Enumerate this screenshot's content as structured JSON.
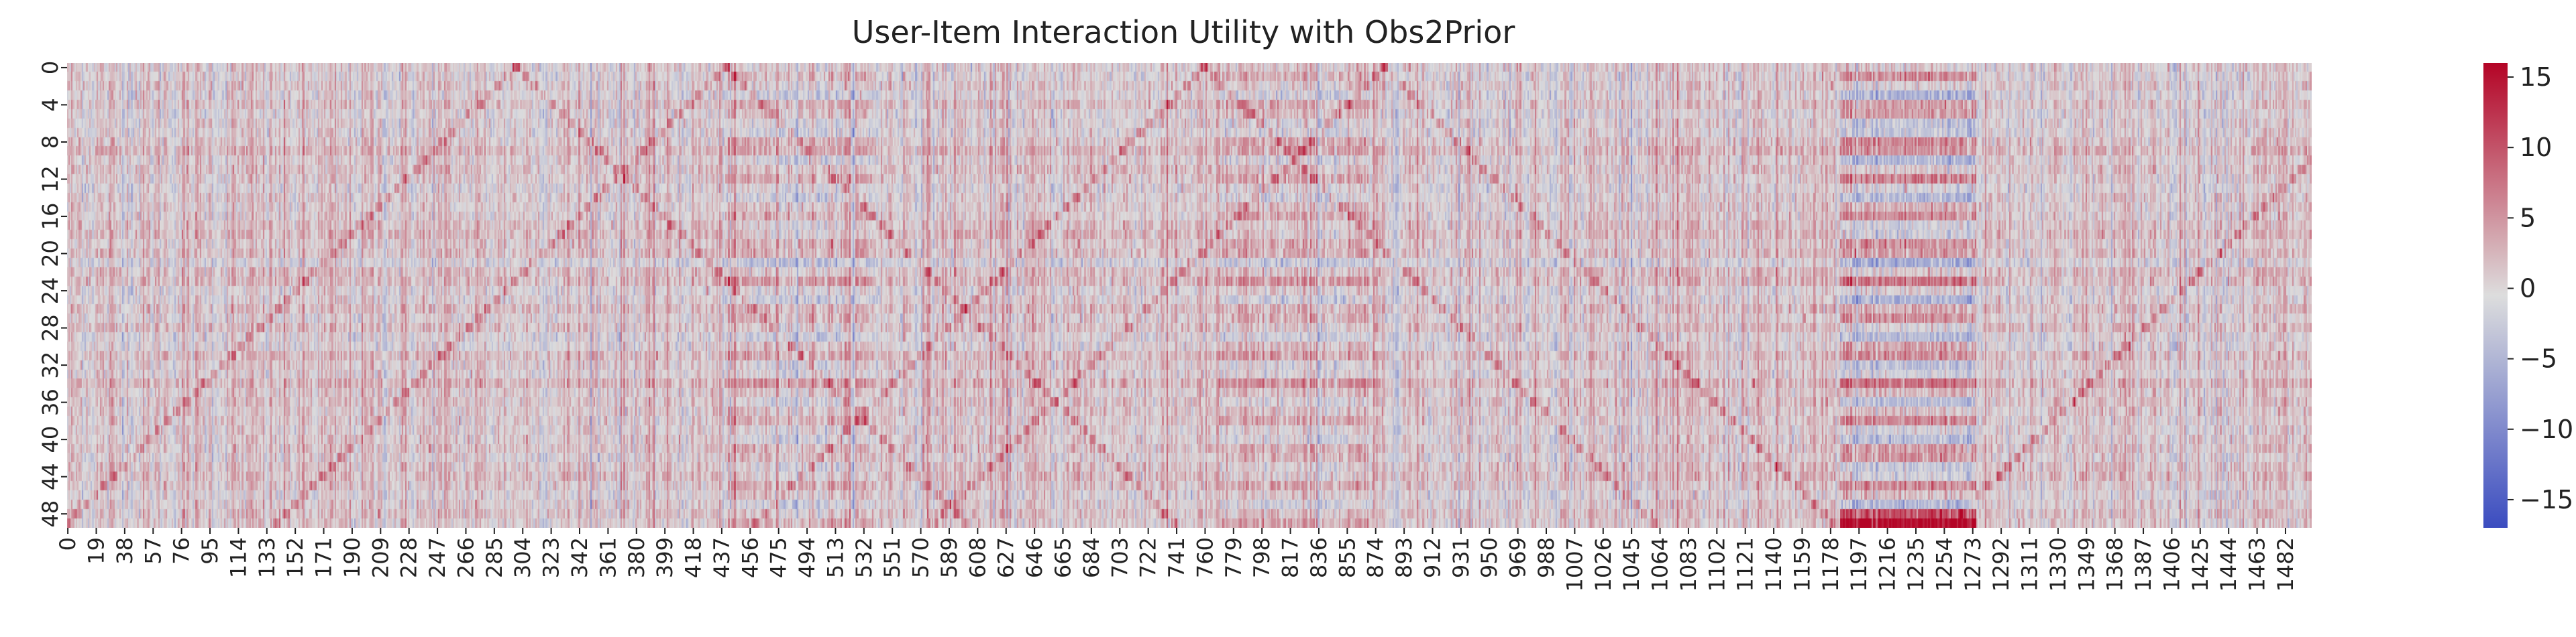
{
  "chart_data": {
    "type": "heatmap",
    "title": "User-Item Interaction Utility with Obs2Prior",
    "xlabel": "",
    "ylabel": "",
    "n_rows": 50,
    "n_cols": 1500,
    "x_tick_labels": [
      "0",
      "19",
      "38",
      "57",
      "76",
      "95",
      "114",
      "133",
      "152",
      "171",
      "190",
      "209",
      "228",
      "247",
      "266",
      "285",
      "304",
      "323",
      "342",
      "361",
      "380",
      "399",
      "418",
      "437",
      "456",
      "475",
      "494",
      "513",
      "532",
      "551",
      "570",
      "589",
      "608",
      "627",
      "646",
      "665",
      "684",
      "703",
      "722",
      "741",
      "760",
      "779",
      "798",
      "817",
      "836",
      "855",
      "874",
      "893",
      "912",
      "931",
      "950",
      "969",
      "988",
      "1007",
      "1026",
      "1045",
      "1064",
      "1083",
      "1102",
      "1121",
      "1140",
      "1159",
      "1178",
      "1197",
      "1216",
      "1235",
      "1254",
      "1273",
      "1292",
      "1311",
      "1330",
      "1349",
      "1368",
      "1387",
      "1406",
      "1425",
      "1444",
      "1463",
      "1482"
    ],
    "y_tick_labels": [
      "0",
      "4",
      "8",
      "12",
      "16",
      "20",
      "24",
      "28",
      "32",
      "36",
      "40",
      "44",
      "48"
    ],
    "colormap": "coolwarm",
    "color_low": "#3b4cc0",
    "color_mid": "#dddddd",
    "color_high": "#b40426",
    "value_range": [
      -17,
      16
    ],
    "colorbar": {
      "ticks": [
        15,
        10,
        5,
        0,
        -5,
        -10,
        -15
      ],
      "tick_labels": [
        "15",
        "10",
        "5",
        "0",
        "−5",
        "−10",
        "−15"
      ]
    },
    "grid": false,
    "legend": "colorbar-right",
    "features": {
      "diagonal_band_endpoints": [
        [
          300,
          0,
          0,
          49
        ],
        [
          300,
          0,
          600,
          49
        ],
        [
          760,
          0,
          460,
          49
        ],
        [
          760,
          0,
          1060,
          49
        ],
        [
          880,
          0,
          580,
          49
        ],
        [
          880,
          0,
          1180,
          49
        ],
        [
          440,
          0,
          140,
          49
        ],
        [
          440,
          0,
          740,
          49
        ],
        [
          1560,
          0,
          1260,
          49
        ],
        [
          1560,
          0,
          1860,
          49
        ]
      ],
      "diagonal_band_value": 7,
      "blocks": [
        {
          "cols": [
            440,
            540
          ],
          "rows": [
            0,
            49
          ],
          "stripe_amplitude": 4
        },
        {
          "cols": [
            770,
            870
          ],
          "rows": [
            0,
            49
          ],
          "stripe_amplitude": 4
        },
        {
          "cols": [
            1185,
            1275
          ],
          "rows": [
            0,
            49
          ],
          "stripe_amplitude": 9
        }
      ]
    }
  }
}
